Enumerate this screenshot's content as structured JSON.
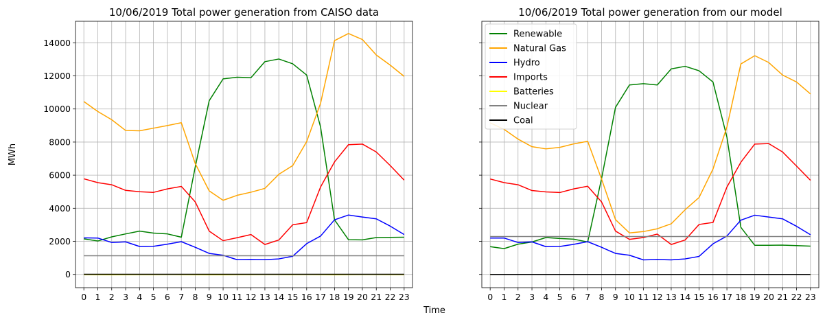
{
  "figure": {
    "ylabel": "MWh",
    "xlabel": "Time"
  },
  "chart_data": [
    {
      "type": "line",
      "title": "10/06/2019 Total power generation from CAISO data",
      "x": [
        0,
        1,
        2,
        3,
        4,
        5,
        6,
        7,
        8,
        9,
        10,
        11,
        12,
        13,
        14,
        15,
        16,
        17,
        18,
        19,
        20,
        21,
        22,
        23
      ],
      "xticks": [
        "0",
        "1",
        "2",
        "3",
        "4",
        "5",
        "6",
        "7",
        "8",
        "9",
        "10",
        "11",
        "12",
        "13",
        "14",
        "15",
        "16",
        "17",
        "18",
        "19",
        "20",
        "21",
        "22",
        "23"
      ],
      "yticks": [
        "0",
        "2000",
        "4000",
        "6000",
        "8000",
        "10000",
        "12000",
        "14000"
      ],
      "ylim": [
        -800,
        15300
      ],
      "xlim": [
        -0.6,
        23.6
      ],
      "grid": true,
      "legend": null,
      "series": [
        {
          "name": "Renewable",
          "color": "#008000",
          "values": [
            2150,
            2020,
            2270,
            2450,
            2620,
            2500,
            2450,
            2250,
            6500,
            10500,
            11820,
            11920,
            11890,
            12860,
            13020,
            12730,
            12050,
            8900,
            3300,
            2100,
            2090,
            2230,
            2240,
            2250
          ]
        },
        {
          "name": "Natural Gas",
          "color": "#FFA500",
          "values": [
            10450,
            9850,
            9350,
            8700,
            8680,
            8840,
            9000,
            9170,
            6700,
            5050,
            4480,
            4780,
            4970,
            5200,
            6050,
            6580,
            8030,
            10350,
            14130,
            14560,
            14200,
            13260,
            12650,
            11970
          ]
        },
        {
          "name": "Hydro",
          "color": "#0000FF",
          "values": [
            2210,
            2200,
            1930,
            1970,
            1690,
            1700,
            1830,
            1980,
            1640,
            1270,
            1160,
            890,
            900,
            890,
            940,
            1100,
            1860,
            2320,
            3300,
            3590,
            3470,
            3360,
            2920,
            2410
          ]
        },
        {
          "name": "Imports",
          "color": "#FF0000",
          "values": [
            5780,
            5550,
            5420,
            5080,
            5000,
            4960,
            5170,
            5320,
            4380,
            2620,
            2040,
            2220,
            2410,
            1810,
            2080,
            3000,
            3130,
            5290,
            6800,
            7840,
            7880,
            7400,
            6580,
            5700
          ]
        },
        {
          "name": "Batteries",
          "color": "#FFFF00",
          "values": [
            -10,
            -15,
            -20,
            -15,
            -10,
            -10,
            -5,
            -10,
            -15,
            -20,
            -20,
            -10,
            -10,
            -5,
            -5,
            -10,
            -5,
            -10,
            -20,
            -10,
            -5,
            -5,
            -10,
            -10
          ]
        },
        {
          "name": "Nuclear",
          "color": "#808080",
          "values": [
            1130,
            1130,
            1130,
            1130,
            1130,
            1130,
            1130,
            1130,
            1130,
            1130,
            1130,
            1130,
            1130,
            1130,
            1130,
            1130,
            1130,
            1130,
            1130,
            1130,
            1130,
            1130,
            1130,
            1130
          ]
        },
        {
          "name": "Coal",
          "color": "#000000",
          "values": [
            10,
            10,
            10,
            10,
            10,
            10,
            10,
            10,
            10,
            10,
            10,
            10,
            10,
            10,
            10,
            10,
            10,
            10,
            10,
            10,
            10,
            10,
            10,
            10
          ]
        }
      ]
    },
    {
      "type": "line",
      "title": "10/06/2019 Total power generation from our model",
      "x": [
        0,
        1,
        2,
        3,
        4,
        5,
        6,
        7,
        8,
        9,
        10,
        11,
        12,
        13,
        14,
        15,
        16,
        17,
        18,
        19,
        20,
        21,
        22,
        23
      ],
      "xticks": [
        "0",
        "1",
        "2",
        "3",
        "4",
        "5",
        "6",
        "7",
        "8",
        "9",
        "10",
        "11",
        "12",
        "13",
        "14",
        "15",
        "16",
        "17",
        "18",
        "19",
        "20",
        "21",
        "22",
        "23"
      ],
      "yticks": [],
      "ylim": [
        -800,
        15300
      ],
      "xlim": [
        -0.6,
        23.6
      ],
      "grid": true,
      "legend": "top-left",
      "series": [
        {
          "name": "Renewable",
          "color": "#008000",
          "values": [
            1680,
            1560,
            1830,
            1960,
            2230,
            2170,
            2130,
            1960,
            5800,
            10100,
            11450,
            11530,
            11450,
            12420,
            12580,
            12310,
            11630,
            8300,
            2850,
            1760,
            1760,
            1770,
            1740,
            1710
          ]
        },
        {
          "name": "Natural Gas",
          "color": "#FFA500",
          "values": [
            9160,
            8770,
            8180,
            7720,
            7590,
            7680,
            7890,
            8050,
            5760,
            3310,
            2510,
            2590,
            2760,
            3060,
            3910,
            4650,
            6370,
            8910,
            12720,
            13220,
            12810,
            12050,
            11630,
            10910
          ]
        },
        {
          "name": "Hydro",
          "color": "#0000FF",
          "values": [
            2200,
            2200,
            1930,
            1970,
            1680,
            1690,
            1820,
            1980,
            1640,
            1270,
            1160,
            880,
            900,
            880,
            940,
            1090,
            1850,
            2320,
            3280,
            3580,
            3470,
            3360,
            2910,
            2400
          ]
        },
        {
          "name": "Imports",
          "color": "#FF0000",
          "values": [
            5770,
            5550,
            5420,
            5070,
            4990,
            4950,
            5170,
            5330,
            4380,
            2620,
            2120,
            2230,
            2440,
            1810,
            2080,
            3020,
            3140,
            5280,
            6780,
            7880,
            7910,
            7400,
            6550,
            5690
          ]
        },
        {
          "name": "Batteries",
          "color": "#FFFF00",
          "values": [
            0,
            0,
            0,
            0,
            0,
            0,
            0,
            0,
            0,
            0,
            0,
            0,
            0,
            0,
            0,
            0,
            0,
            0,
            0,
            0,
            0,
            0,
            0,
            0
          ]
        },
        {
          "name": "Nuclear",
          "color": "#808080",
          "values": [
            2290,
            2290,
            2290,
            2290,
            2290,
            2290,
            2290,
            2290,
            2290,
            2290,
            2290,
            2290,
            2290,
            2290,
            2290,
            2290,
            2290,
            2290,
            2290,
            2290,
            2290,
            2290,
            2290,
            2290
          ]
        },
        {
          "name": "Coal",
          "color": "#000000",
          "values": [
            0,
            0,
            0,
            0,
            0,
            0,
            0,
            0,
            0,
            0,
            0,
            0,
            0,
            0,
            0,
            0,
            0,
            0,
            0,
            0,
            0,
            0,
            0,
            0
          ]
        }
      ]
    }
  ]
}
